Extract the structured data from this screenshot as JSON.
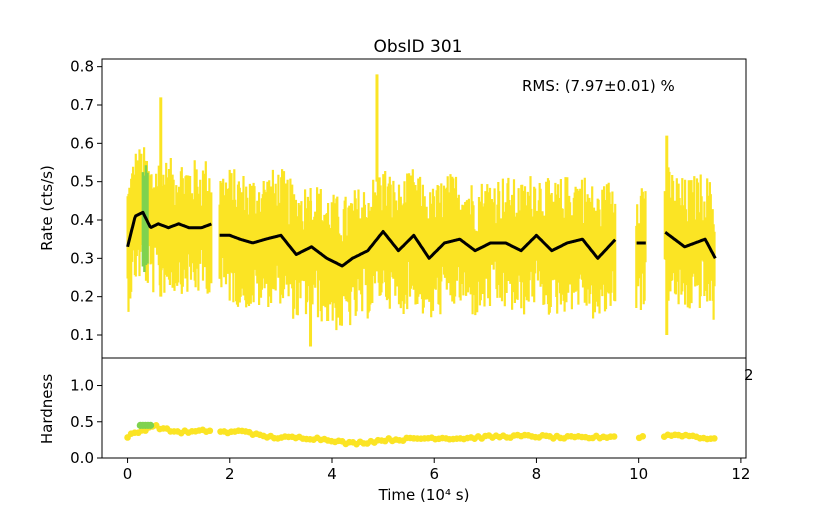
{
  "chart_data": {
    "type": "line",
    "title": "ObsID 301",
    "annotation": "RMS:  (7.97±0.01) %",
    "stray_label": "2",
    "colors": {
      "raw": "#fbe424",
      "highlight": "#7fd24f",
      "smooth": "#000000",
      "hardness": "#fbe424",
      "hardness_highlight": "#7fd24f"
    },
    "xlabel": "Time (10⁴ s)",
    "xlim": [
      -0.5,
      12.1
    ],
    "xticks": [
      0,
      2,
      4,
      6,
      8,
      10,
      12
    ],
    "xtick_labels": [
      "0",
      "2",
      "4",
      "6",
      "8",
      "10",
      "12"
    ],
    "gaps": [
      [
        1.65,
        1.8
      ],
      [
        9.55,
        9.95
      ],
      [
        10.15,
        10.5
      ]
    ],
    "rate_panel": {
      "ylabel": "Rate (cts/s)",
      "ylim": [
        0.04,
        0.82
      ],
      "yticks": [
        0.1,
        0.2,
        0.3,
        0.4,
        0.5,
        0.6,
        0.7,
        0.8
      ],
      "ytick_labels": [
        "0.1",
        "0.2",
        "0.3",
        "0.4",
        "0.5",
        "0.6",
        "0.7",
        "0.8"
      ],
      "spikes": [
        {
          "t": 4.88,
          "lo": 0.5,
          "hi": 0.78
        },
        {
          "t": 10.55,
          "lo": 0.1,
          "hi": 0.62
        },
        {
          "t": 3.58,
          "lo": 0.07,
          "hi": 0.45
        },
        {
          "t": 0.65,
          "lo": 0.2,
          "hi": 0.72
        }
      ],
      "smooth_series": {
        "name": "smoothed rate",
        "x": [
          0.0,
          0.15,
          0.3,
          0.45,
          0.6,
          0.8,
          1.0,
          1.2,
          1.45,
          1.65,
          1.8,
          2.0,
          2.2,
          2.45,
          2.7,
          3.0,
          3.3,
          3.6,
          3.9,
          4.2,
          4.4,
          4.7,
          5.0,
          5.3,
          5.6,
          5.9,
          6.2,
          6.5,
          6.8,
          7.1,
          7.4,
          7.7,
          8.0,
          8.3,
          8.6,
          8.9,
          9.2,
          9.55,
          9.95,
          10.15,
          10.5,
          10.7,
          10.9,
          11.1,
          11.3,
          11.5
        ],
        "values": [
          0.33,
          0.41,
          0.42,
          0.38,
          0.39,
          0.38,
          0.39,
          0.38,
          0.38,
          0.39,
          0.36,
          0.36,
          0.35,
          0.34,
          0.35,
          0.36,
          0.31,
          0.33,
          0.3,
          0.28,
          0.3,
          0.32,
          0.37,
          0.32,
          0.36,
          0.3,
          0.34,
          0.35,
          0.32,
          0.34,
          0.34,
          0.32,
          0.36,
          0.32,
          0.34,
          0.35,
          0.3,
          0.35,
          0.34,
          0.34,
          0.37,
          0.35,
          0.33,
          0.34,
          0.35,
          0.3
        ]
      },
      "highlight_band": {
        "x_start": 0.3,
        "x_end": 0.42,
        "lo": 0.26,
        "hi": 0.55
      }
    },
    "hardness_panel": {
      "ylabel": "Hardness",
      "ylim": [
        0.0,
        1.38
      ],
      "yticks": [
        0.0,
        0.5,
        1.0
      ],
      "ytick_labels": [
        "0.0",
        "0.5",
        "1.0"
      ],
      "series": {
        "name": "hardness",
        "x": [
          0.0,
          0.3,
          0.5,
          0.8,
          1.0,
          1.3,
          1.6,
          2.0,
          2.3,
          2.6,
          3.0,
          3.5,
          4.0,
          4.3,
          4.7,
          5.0,
          5.5,
          6.0,
          6.5,
          7.0,
          7.5,
          8.0,
          8.5,
          9.0,
          9.55,
          9.95,
          10.15,
          10.5,
          10.8,
          11.1,
          11.5
        ],
        "values": [
          0.3,
          0.38,
          0.45,
          0.38,
          0.36,
          0.36,
          0.38,
          0.35,
          0.38,
          0.3,
          0.28,
          0.28,
          0.25,
          0.2,
          0.22,
          0.25,
          0.26,
          0.28,
          0.27,
          0.29,
          0.3,
          0.3,
          0.28,
          0.28,
          0.3,
          0.28,
          0.3,
          0.31,
          0.32,
          0.3,
          0.25
        ]
      },
      "highlight": {
        "x_start": 0.25,
        "x_end": 0.45,
        "value": 0.45
      }
    }
  }
}
